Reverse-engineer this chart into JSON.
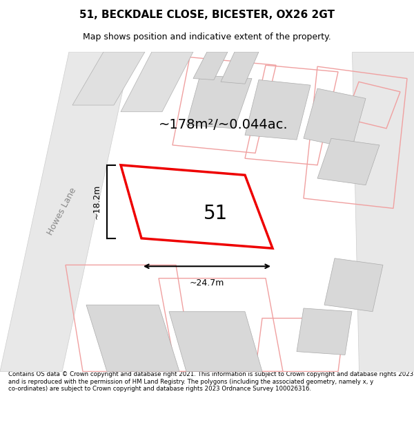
{
  "title": "51, BECKDALE CLOSE, BICESTER, OX26 2GT",
  "subtitle": "Map shows position and indicative extent of the property.",
  "area_text": "~178m²/~0.044ac.",
  "label_51": "51",
  "dim_width": "~24.7m",
  "dim_height": "~18.2m",
  "road_label": "Howes Lane",
  "footer": "Contains OS data © Crown copyright and database right 2021. This information is subject to Crown copyright and database rights 2023 and is reproduced with the permission of HM Land Registry. The polygons (including the associated geometry, namely x, y co-ordinates) are subject to Crown copyright and database rights 2023 Ordnance Survey 100026316.",
  "bg_color": "#f5f5f5",
  "plot_bg": "#ffffff",
  "red_color": "#ee0000",
  "gray_building": "#d8d8d8",
  "gray_outline": "#c0c0c0",
  "pink_line": "#f0a0a0",
  "road_gray": "#e0e0e0"
}
